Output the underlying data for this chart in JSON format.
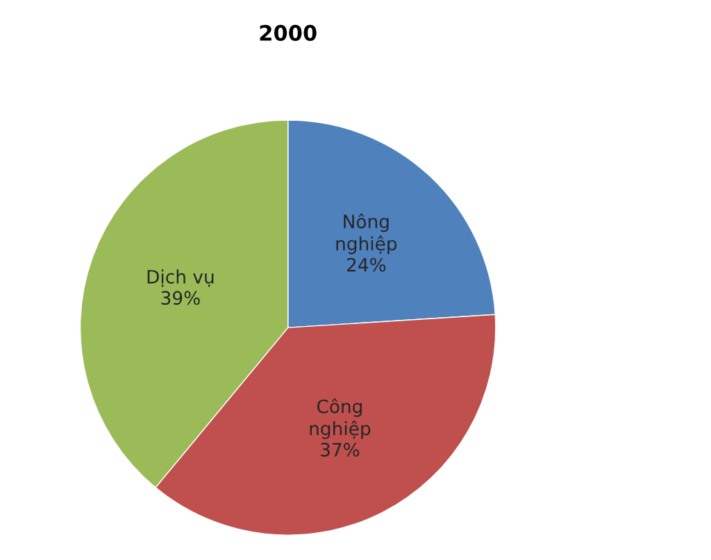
{
  "chart_data": {
    "type": "pie",
    "title": "2000",
    "categories": [
      "Nông nghiệp",
      "Công nghiệp",
      "Dịch vụ"
    ],
    "values": [
      24,
      37,
      39
    ],
    "colors": [
      "#4f81bd",
      "#c0504d",
      "#9bbb59"
    ],
    "value_labels": [
      "24%",
      "37%",
      "39%"
    ]
  }
}
